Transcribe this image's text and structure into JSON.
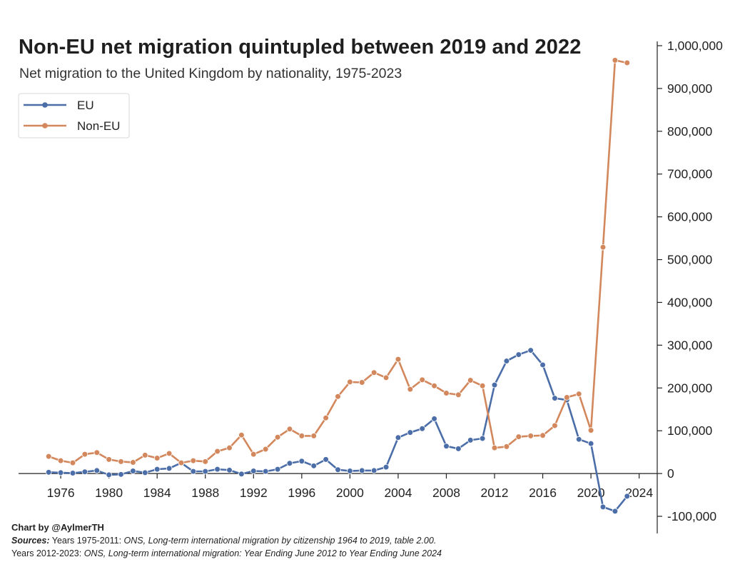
{
  "header": {
    "title": "Non-EU net migration quintupled between 2019 and 2022",
    "subtitle": "Net migration to the United Kingdom by nationality, 1975-2023"
  },
  "footer": {
    "credit": "Chart by @AylmerTH",
    "sources_label": "Sources:",
    "source1_prefix": "Years 1975-2011: ",
    "source1_italic": "ONS, Long-term international migration by citizenship 1964 to 2019, table 2.00.",
    "source2_prefix": "Years 2012-2023: ",
    "source2_italic": "ONS, Long-term international migration: Year Ending June 2012 to Year Ending June 2024"
  },
  "chart_data": {
    "type": "line",
    "title": "Non-EU net migration quintupled between 2019 and 2022",
    "subtitle": "Net migration to the United Kingdom by nationality, 1975-2023",
    "xlabel": "",
    "ylabel": "",
    "xlim": [
      1972.5,
      2025.5
    ],
    "ylim": [
      -140000,
      1010000
    ],
    "x_ticks": [
      1976,
      1980,
      1984,
      1988,
      1992,
      1996,
      2000,
      2004,
      2008,
      2012,
      2016,
      2020,
      2024
    ],
    "y_ticks": [
      -100000,
      0,
      100000,
      200000,
      300000,
      400000,
      500000,
      600000,
      700000,
      800000,
      900000,
      1000000
    ],
    "y_tick_labels": [
      "-100,000",
      "0",
      "100,000",
      "200,000",
      "300,000",
      "400,000",
      "500,000",
      "600,000",
      "700,000",
      "800,000",
      "900,000",
      "1,000,000"
    ],
    "y_axis_position": "right",
    "grid": false,
    "legend_position": "top-left",
    "x": [
      1975,
      1976,
      1977,
      1978,
      1979,
      1980,
      1981,
      1982,
      1983,
      1984,
      1985,
      1986,
      1987,
      1988,
      1989,
      1990,
      1991,
      1992,
      1993,
      1994,
      1995,
      1996,
      1997,
      1998,
      1999,
      2000,
      2001,
      2002,
      2003,
      2004,
      2005,
      2006,
      2007,
      2008,
      2009,
      2010,
      2011,
      2012,
      2013,
      2014,
      2015,
      2016,
      2017,
      2018,
      2019,
      2020,
      2021,
      2022,
      2023
    ],
    "series": [
      {
        "name": "EU",
        "color": "#4c6ea8",
        "values": [
          3000,
          2000,
          1000,
          4000,
          7000,
          -3000,
          -2000,
          6000,
          2000,
          10000,
          12000,
          25000,
          5000,
          5000,
          10000,
          8000,
          -1000,
          6000,
          5000,
          10000,
          24000,
          29000,
          18000,
          33000,
          9000,
          6000,
          7000,
          7000,
          15000,
          84000,
          96000,
          105000,
          128000,
          64000,
          58000,
          78000,
          82000,
          207000,
          263000,
          278000,
          288000,
          254000,
          176000,
          172000,
          80000,
          70000,
          -78000,
          -88000,
          -53000
        ]
      },
      {
        "name": "Non-EU",
        "color": "#d3875c",
        "values": [
          40000,
          30000,
          25000,
          45000,
          49000,
          33000,
          28000,
          26000,
          43000,
          36000,
          47000,
          25000,
          30000,
          28000,
          52000,
          60000,
          90000,
          45000,
          57000,
          85000,
          104000,
          88000,
          88000,
          130000,
          180000,
          214000,
          213000,
          236000,
          224000,
          267000,
          197000,
          219000,
          205000,
          188000,
          184000,
          218000,
          205000,
          60000,
          63000,
          86000,
          88000,
          89000,
          112000,
          178000,
          186000,
          101000,
          529000,
          966000,
          960000
        ]
      }
    ]
  }
}
